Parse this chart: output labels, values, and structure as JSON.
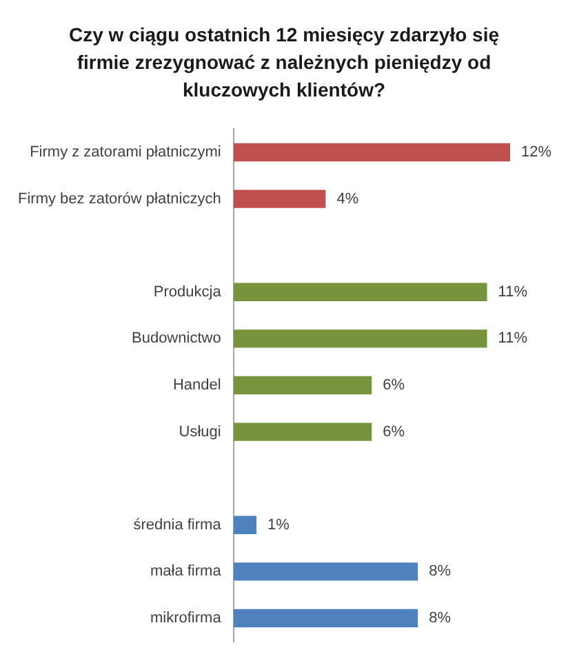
{
  "chart_data": {
    "type": "bar",
    "orientation": "horizontal",
    "title": "Czy w ciągu ostatnich 12 miesięcy zdarzyło się firmie zrezygnować z należnych pieniędzy od kluczowych klientów?",
    "categories": [
      "Firmy z zatorami płatniczymi",
      "Firmy bez zatorów płatniczych",
      null,
      "Produkcja",
      "Budownictwo",
      "Handel",
      "Usługi",
      null,
      "średnia firma",
      "mała firma",
      "mikrofirma"
    ],
    "values": [
      12,
      4,
      null,
      11,
      11,
      6,
      6,
      null,
      1,
      8,
      8
    ],
    "colors": [
      "#c0504d",
      "#c0504d",
      null,
      "#77933c",
      "#77933c",
      "#77933c",
      "#77933c",
      null,
      "#4f81bd",
      "#4f81bd",
      "#4f81bd"
    ],
    "value_labels": [
      "12%",
      "4%",
      null,
      "11%",
      "11%",
      "6%",
      "6%",
      null,
      "1%",
      "8%",
      "8%"
    ],
    "tick_labels": "y"
  }
}
